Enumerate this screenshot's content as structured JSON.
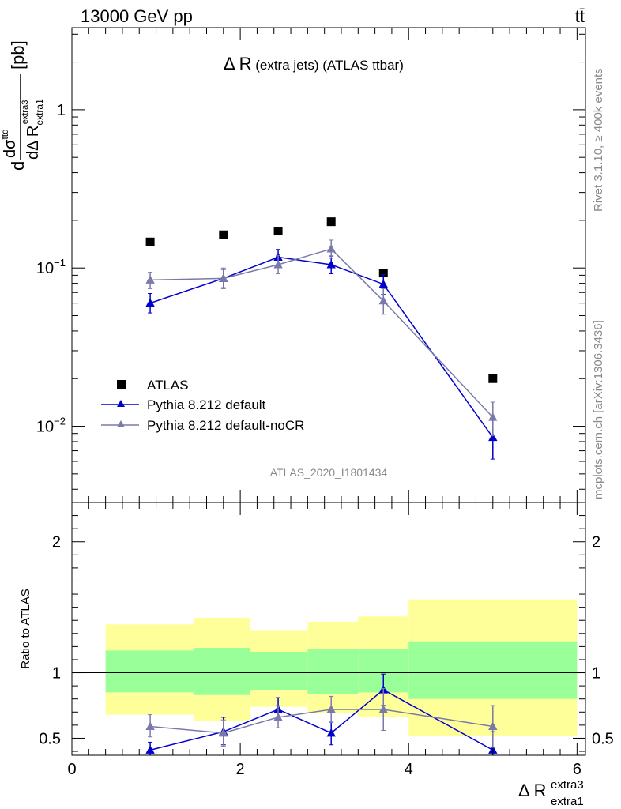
{
  "header": {
    "left": "13000 GeV pp",
    "right": "tt̄"
  },
  "side_labels": {
    "rivet": "Rivet 3.1.10, ≥ 400k events",
    "mcplots": "mcplots.cern.ch [arXiv:1306.3436]"
  },
  "chart_data": [
    {
      "type": "scatter",
      "panel": "main",
      "title": "Δ R (extra jets) (ATLAS ttbar)",
      "title_main": "Δ R",
      "title_rest": " (extra jets) (ATLAS ttbar)",
      "watermark": "ATLAS_2020_I1801434",
      "ylabel": {
        "d": "d",
        "sigma": "dσ",
        "sigma_sup": "ttd",
        "denom": "dΔ R",
        "denom_sub": "extra1",
        "denom_sup": "extra3",
        "unit": "[pb]"
      },
      "yscale": "log",
      "ylim": [
        0.0033,
        3.3
      ],
      "xlim": [
        0,
        6.1
      ],
      "yticks": [
        {
          "v": 1,
          "b": "1",
          "e": ""
        },
        {
          "v": 0.1,
          "b": "10",
          "e": "−1"
        },
        {
          "v": 0.01,
          "b": "10",
          "e": "−2"
        }
      ],
      "legend_position": "lower-left",
      "series": [
        {
          "name": "ATLAS",
          "marker": "square",
          "color": "#000000",
          "points": [
            {
              "x": 0.93,
              "y": 0.146
            },
            {
              "x": 1.8,
              "y": 0.162
            },
            {
              "x": 2.45,
              "y": 0.171
            },
            {
              "x": 3.08,
              "y": 0.196
            },
            {
              "x": 3.7,
              "y": 0.093
            },
            {
              "x": 5.0,
              "y": 0.02
            }
          ]
        },
        {
          "name": "Pythia 8.212 default",
          "marker": "triangle",
          "color": "#0000cc",
          "points": [
            {
              "x": 0.93,
              "y": 0.06,
              "lo": 0.052,
              "hi": 0.069
            },
            {
              "x": 1.8,
              "y": 0.086,
              "lo": 0.075,
              "hi": 0.098
            },
            {
              "x": 2.45,
              "y": 0.117,
              "lo": 0.104,
              "hi": 0.131
            },
            {
              "x": 3.08,
              "y": 0.105,
              "lo": 0.092,
              "hi": 0.119
            },
            {
              "x": 3.7,
              "y": 0.079,
              "lo": 0.068,
              "hi": 0.091
            },
            {
              "x": 5.0,
              "y": 0.0085,
              "lo": 0.0062,
              "hi": 0.0109
            }
          ]
        },
        {
          "name": "Pythia 8.212 default-noCR",
          "marker": "triangle",
          "color": "#7a7aaa",
          "points": [
            {
              "x": 0.93,
              "y": 0.084,
              "lo": 0.074,
              "hi": 0.094
            },
            {
              "x": 1.8,
              "y": 0.086,
              "lo": 0.074,
              "hi": 0.1
            },
            {
              "x": 2.45,
              "y": 0.105,
              "lo": 0.092,
              "hi": 0.12
            },
            {
              "x": 3.08,
              "y": 0.132,
              "lo": 0.115,
              "hi": 0.15
            },
            {
              "x": 3.7,
              "y": 0.062,
              "lo": 0.051,
              "hi": 0.074
            },
            {
              "x": 5.0,
              "y": 0.0114,
              "lo": 0.0087,
              "hi": 0.0142
            }
          ]
        }
      ]
    },
    {
      "type": "scatter",
      "panel": "ratio",
      "ylabel": "Ratio to ATLAS",
      "xlabel": {
        "main": "Δ R",
        "sup": "extra3",
        "sub": "extra1"
      },
      "xlim": [
        0,
        6.1
      ],
      "ylim": [
        0.37,
        2.3
      ],
      "xticks": [
        0,
        2,
        4,
        6
      ],
      "yticks": [
        0.5,
        1,
        2
      ],
      "reference_line": 1,
      "bands": [
        {
          "x0": 0.4,
          "x1": 1.45,
          "yel_lo": 0.68,
          "yel_hi": 1.37,
          "grn_lo": 0.85,
          "grn_hi": 1.17
        },
        {
          "x0": 1.45,
          "x1": 2.12,
          "yel_lo": 0.63,
          "yel_hi": 1.42,
          "grn_lo": 0.83,
          "grn_hi": 1.19
        },
        {
          "x0": 2.12,
          "x1": 2.8,
          "yel_lo": 0.74,
          "yel_hi": 1.32,
          "grn_lo": 0.87,
          "grn_hi": 1.16
        },
        {
          "x0": 2.8,
          "x1": 3.4,
          "yel_lo": 0.69,
          "yel_hi": 1.39,
          "grn_lo": 0.84,
          "grn_hi": 1.18
        },
        {
          "x0": 3.4,
          "x1": 4.0,
          "yel_lo": 0.66,
          "yel_hi": 1.43,
          "grn_lo": 0.85,
          "grn_hi": 1.18
        },
        {
          "x0": 4.0,
          "x1": 6.0,
          "yel_lo": 0.52,
          "yel_hi": 1.56,
          "grn_lo": 0.8,
          "grn_hi": 1.24
        }
      ],
      "series": [
        {
          "name": "Pythia 8.212 default",
          "color": "#0000cc",
          "points": [
            {
              "x": 0.93,
              "y": 0.41,
              "lo": 0.35,
              "hi": 0.47
            },
            {
              "x": 1.8,
              "y": 0.55,
              "lo": 0.45,
              "hi": 0.66
            },
            {
              "x": 2.45,
              "y": 0.72,
              "lo": 0.64,
              "hi": 0.81
            },
            {
              "x": 3.08,
              "y": 0.54,
              "lo": 0.45,
              "hi": 0.63
            },
            {
              "x": 3.7,
              "y": 0.87,
              "lo": 0.75,
              "hi": 0.99
            },
            {
              "x": 5.0,
              "y": 0.41,
              "lo": 0.3,
              "hi": 0.55
            }
          ]
        },
        {
          "name": "Pythia 8.212 default-noCR",
          "color": "#7a7aaa",
          "points": [
            {
              "x": 0.93,
              "y": 0.59,
              "lo": 0.51,
              "hi": 0.68
            },
            {
              "x": 1.8,
              "y": 0.54,
              "lo": 0.44,
              "hi": 0.64
            },
            {
              "x": 2.45,
              "y": 0.66,
              "lo": 0.58,
              "hi": 0.75
            },
            {
              "x": 3.08,
              "y": 0.72,
              "lo": 0.62,
              "hi": 0.82
            },
            {
              "x": 3.7,
              "y": 0.72,
              "lo": 0.56,
              "hi": 0.88
            },
            {
              "x": 5.0,
              "y": 0.59,
              "lo": 0.43,
              "hi": 0.75
            }
          ]
        }
      ]
    }
  ]
}
